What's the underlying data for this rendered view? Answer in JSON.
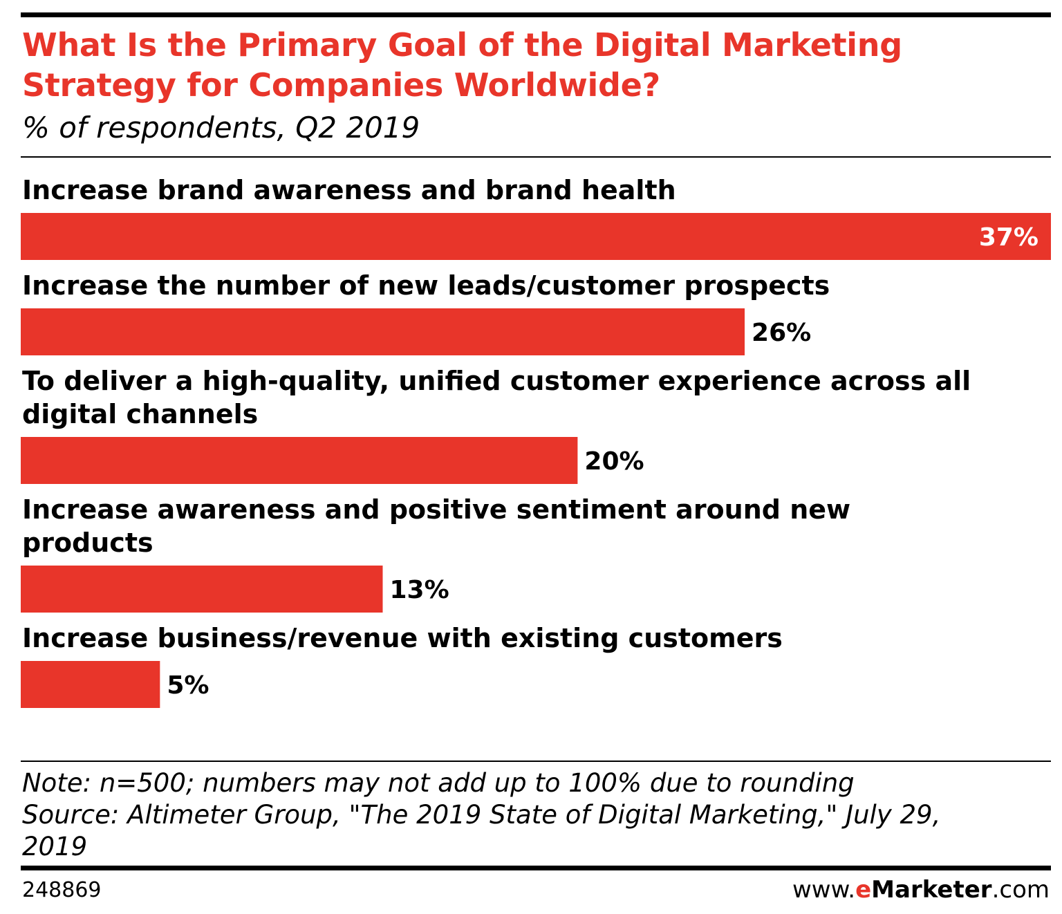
{
  "header": {
    "title": "What Is the Primary Goal of the Digital Marketing Strategy for Companies Worldwide?",
    "subtitle": "% of respondents, Q2 2019"
  },
  "colors": {
    "accent": "#e8352a",
    "bar": "#e8352a",
    "text": "#000000",
    "inside_label": "#ffffff"
  },
  "chart_data": {
    "type": "bar",
    "orientation": "horizontal",
    "categories": [
      [
        "Increase brand awareness and brand health"
      ],
      [
        "Increase the number of new leads/customer prospects"
      ],
      [
        "To deliver a high-quality, unified customer experience across all",
        "digital channels"
      ],
      [
        "Increase awareness and positive sentiment around new",
        "products"
      ],
      [
        "Increase business/revenue with existing customers"
      ]
    ],
    "values": [
      37,
      26,
      20,
      13,
      5
    ],
    "value_labels": [
      "37%",
      "26%",
      "20%",
      "13%",
      "5%"
    ],
    "unit": "%",
    "xlim": [
      0,
      37
    ],
    "grid": false,
    "legend": "none"
  },
  "footer": {
    "note": "Note: n=500; numbers may not add up to 100% due to rounding",
    "source_line1": "Source: Altimeter Group, \"The 2019 State of Digital Marketing,\" July 29,",
    "source_line2": "2019",
    "chart_id": "248869",
    "brand_prefix": "www.",
    "brand_e": "e",
    "brand_name": "Marketer",
    "brand_suffix": ".com"
  }
}
